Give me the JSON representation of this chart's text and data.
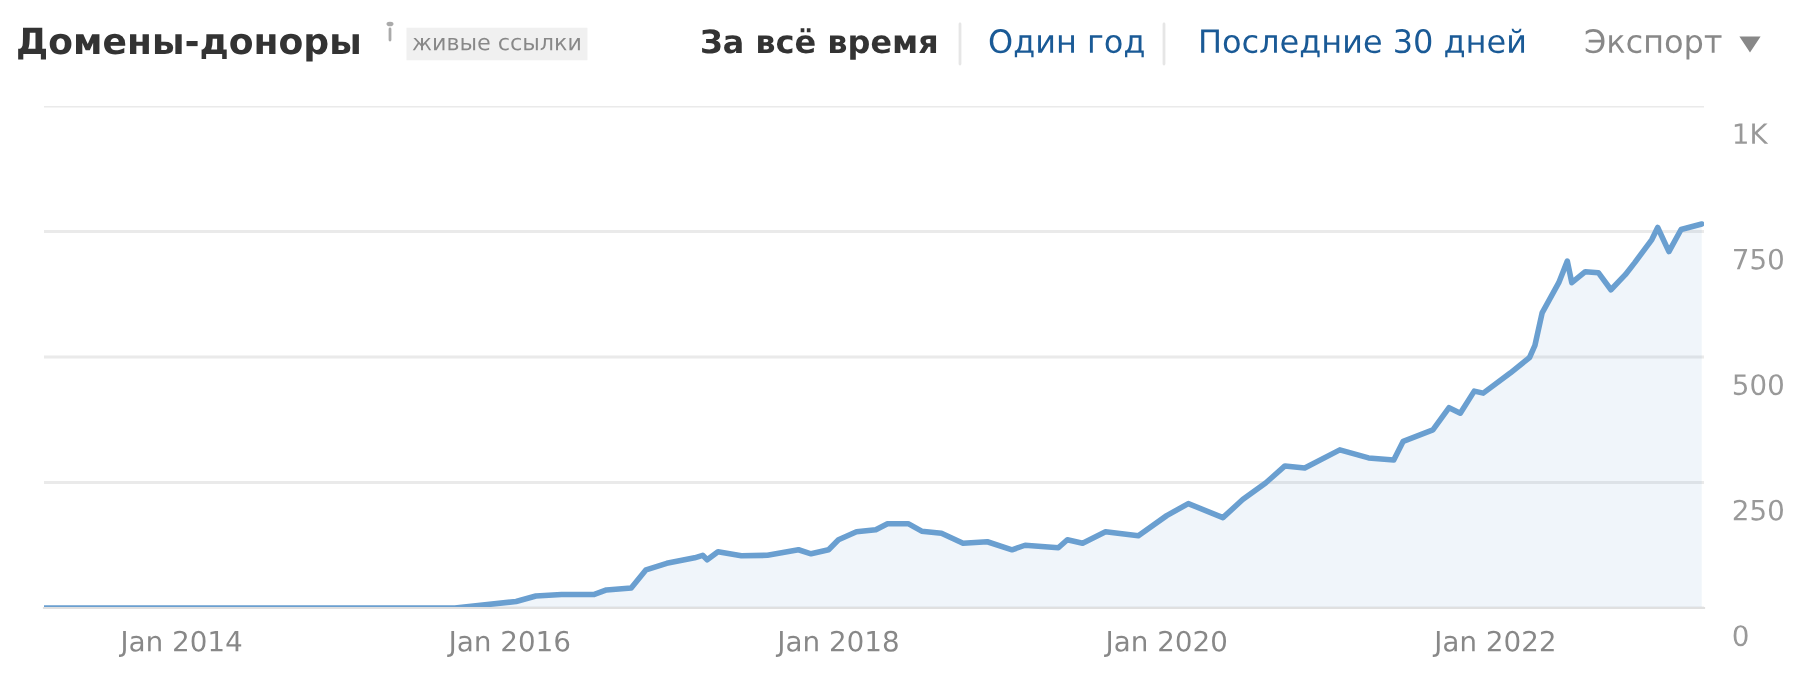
{
  "chart_data": {
    "type": "area",
    "title": "Домены-доноры",
    "subtitle": "живые ссылки",
    "annotations": [
      "За всё время",
      "Один год",
      "Последние 30 дней",
      "Экспорт"
    ],
    "x": [
      "2013-03-01",
      "2015-09-01",
      "2016-01-15",
      "2016-02-28",
      "2016-04-25",
      "2016-07-07",
      "2016-08-03",
      "2016-09-27",
      "2016-10-30",
      "2016-12-15",
      "2017-02-15",
      "2017-03-05",
      "2017-03-15",
      "2017-04-08",
      "2017-05-30",
      "2017-07-27",
      "2017-10-04",
      "2017-11-01",
      "2017-12-10",
      "2018-01-01",
      "2018-02-10",
      "2018-03-25",
      "2018-04-20",
      "2018-06-05",
      "2018-07-05",
      "2018-08-18",
      "2018-10-05",
      "2018-11-28",
      "2019-01-22",
      "2019-02-20",
      "2019-05-05",
      "2019-05-25",
      "2019-06-28",
      "2019-08-18",
      "2019-10-30",
      "2020-01-01",
      "2020-02-18",
      "2020-05-05",
      "2020-06-18",
      "2020-08-08",
      "2020-09-20",
      "2020-11-03",
      "2021-01-20",
      "2021-03-25",
      "2021-05-20",
      "2021-06-10",
      "2021-08-15",
      "2021-09-20",
      "2021-10-15",
      "2021-11-15",
      "2021-12-05",
      "2022-02-03",
      "2022-03-18",
      "2022-03-30",
      "2022-04-15",
      "2022-05-22",
      "2022-06-10",
      "2022-06-20",
      "2022-07-20",
      "2022-08-18",
      "2022-09-15",
      "2022-10-17",
      "2022-11-07",
      "2022-12-15",
      "2022-12-28",
      "2023-01-22",
      "2023-02-18",
      "2023-04-05"
    ],
    "series": [
      {
        "color": "#6a9fd0",
        "values": [
          0,
          0,
          13,
          24,
          27,
          27,
          36,
          40,
          76,
          89,
          100,
          105,
          96,
          112,
          104,
          105,
          116,
          108,
          116,
          136,
          152,
          156,
          168,
          168,
          153,
          149,
          129,
          132,
          116,
          125,
          120,
          136,
          129,
          152,
          144,
          184,
          208,
          180,
          216,
          249,
          283,
          279,
          315,
          299,
          295,
          332,
          355,
          399,
          388,
          432,
          428,
          468,
          499,
          523,
          588,
          648,
          691,
          648,
          670,
          668,
          634,
          664,
          688,
          734,
          758,
          710,
          754,
          765
        ]
      }
    ],
    "xlim": [
      "2013-03-01",
      "2023-04-10"
    ],
    "xticks": [
      {
        "value": "2014-01-01",
        "label": "Jan 2014"
      },
      {
        "value": "2016-01-01",
        "label": "Jan 2016"
      },
      {
        "value": "2018-01-01",
        "label": "Jan 2018"
      },
      {
        "value": "2020-01-01",
        "label": "Jan 2020"
      },
      {
        "value": "2022-01-01",
        "label": "Jan 2022"
      }
    ],
    "ylim": [
      0,
      1000
    ],
    "yticks": [
      0,
      250,
      500,
      750,
      {
        "value": 1000,
        "label": "1K"
      }
    ],
    "grid": "y"
  }
}
